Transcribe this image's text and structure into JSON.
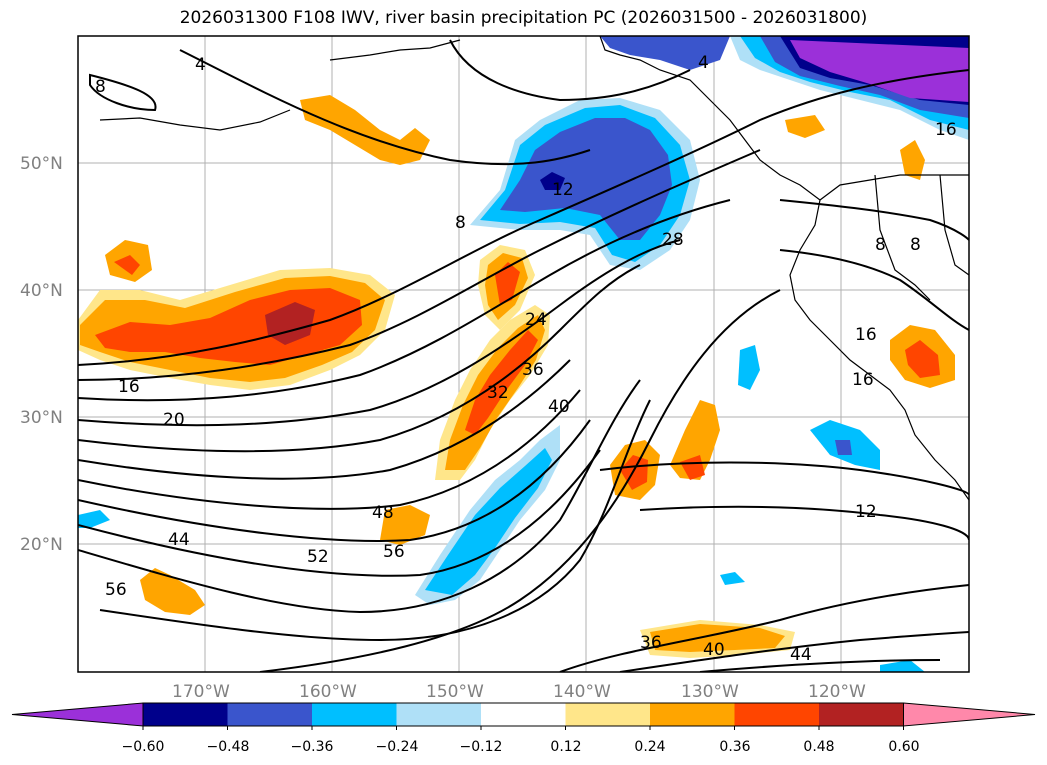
{
  "title": "2026031300 F108 IWV, river basin precipitation PC (2026031500 - 2026031800)",
  "map": {
    "lat_labels": [
      "50°N",
      "40°N",
      "30°N",
      "20°N"
    ],
    "lon_labels": [
      "170°W",
      "160°W",
      "150°W",
      "140°W",
      "130°W",
      "120°W"
    ],
    "contour_labels": [
      "4",
      "8",
      "8",
      "12",
      "16",
      "16",
      "20",
      "24",
      "28",
      "32",
      "36",
      "36",
      "40",
      "40",
      "44",
      "44",
      "48",
      "52",
      "56",
      "56",
      "12",
      "16",
      "8",
      "8",
      "4",
      "16"
    ]
  },
  "colorbar": {
    "colors": [
      "#9b30d9",
      "#00008b",
      "#3a55cc",
      "#00bfff",
      "#afe0f7",
      "#ffffff",
      "#ffe68a",
      "#ffa500",
      "#ff4500",
      "#b22222",
      "#ff88aa"
    ],
    "labels": [
      "−0.60",
      "−0.48",
      "−0.36",
      "−0.24",
      "−0.12",
      "0.12",
      "0.24",
      "0.36",
      "0.48",
      "0.60"
    ]
  }
}
